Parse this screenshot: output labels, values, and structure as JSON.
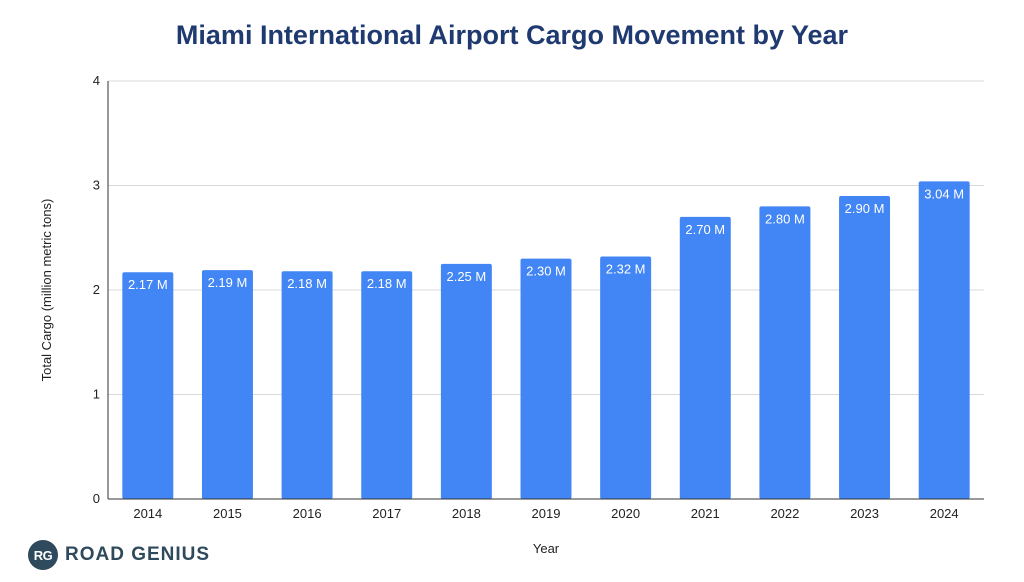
{
  "chart_data": {
    "type": "bar",
    "title": "Miami International Airport Cargo Movement by Year",
    "xlabel": "Year",
    "ylabel": "Total Cargo (million metric tons)",
    "ylim": [
      0,
      4
    ],
    "yticks": [
      "0",
      "1",
      "2",
      "3",
      "4"
    ],
    "grid": true,
    "categories": [
      "2014",
      "2015",
      "2016",
      "2017",
      "2018",
      "2019",
      "2020",
      "2021",
      "2022",
      "2023",
      "2024"
    ],
    "values": [
      2.17,
      2.19,
      2.18,
      2.18,
      2.25,
      2.3,
      2.32,
      2.7,
      2.8,
      2.9,
      3.04
    ],
    "data_labels": [
      "2.17 M",
      "2.19 M",
      "2.18 M",
      "2.18 M",
      "2.25 M",
      "2.30 M",
      "2.32 M",
      "2.70 M",
      "2.80 M",
      "2.90 M",
      "3.04 M"
    ],
    "bar_color": "#4285f4",
    "grid_color": "#d9d9d9",
    "axis_color": "#333333"
  },
  "branding": {
    "badge": "RG",
    "name": "ROAD GENIUS"
  }
}
